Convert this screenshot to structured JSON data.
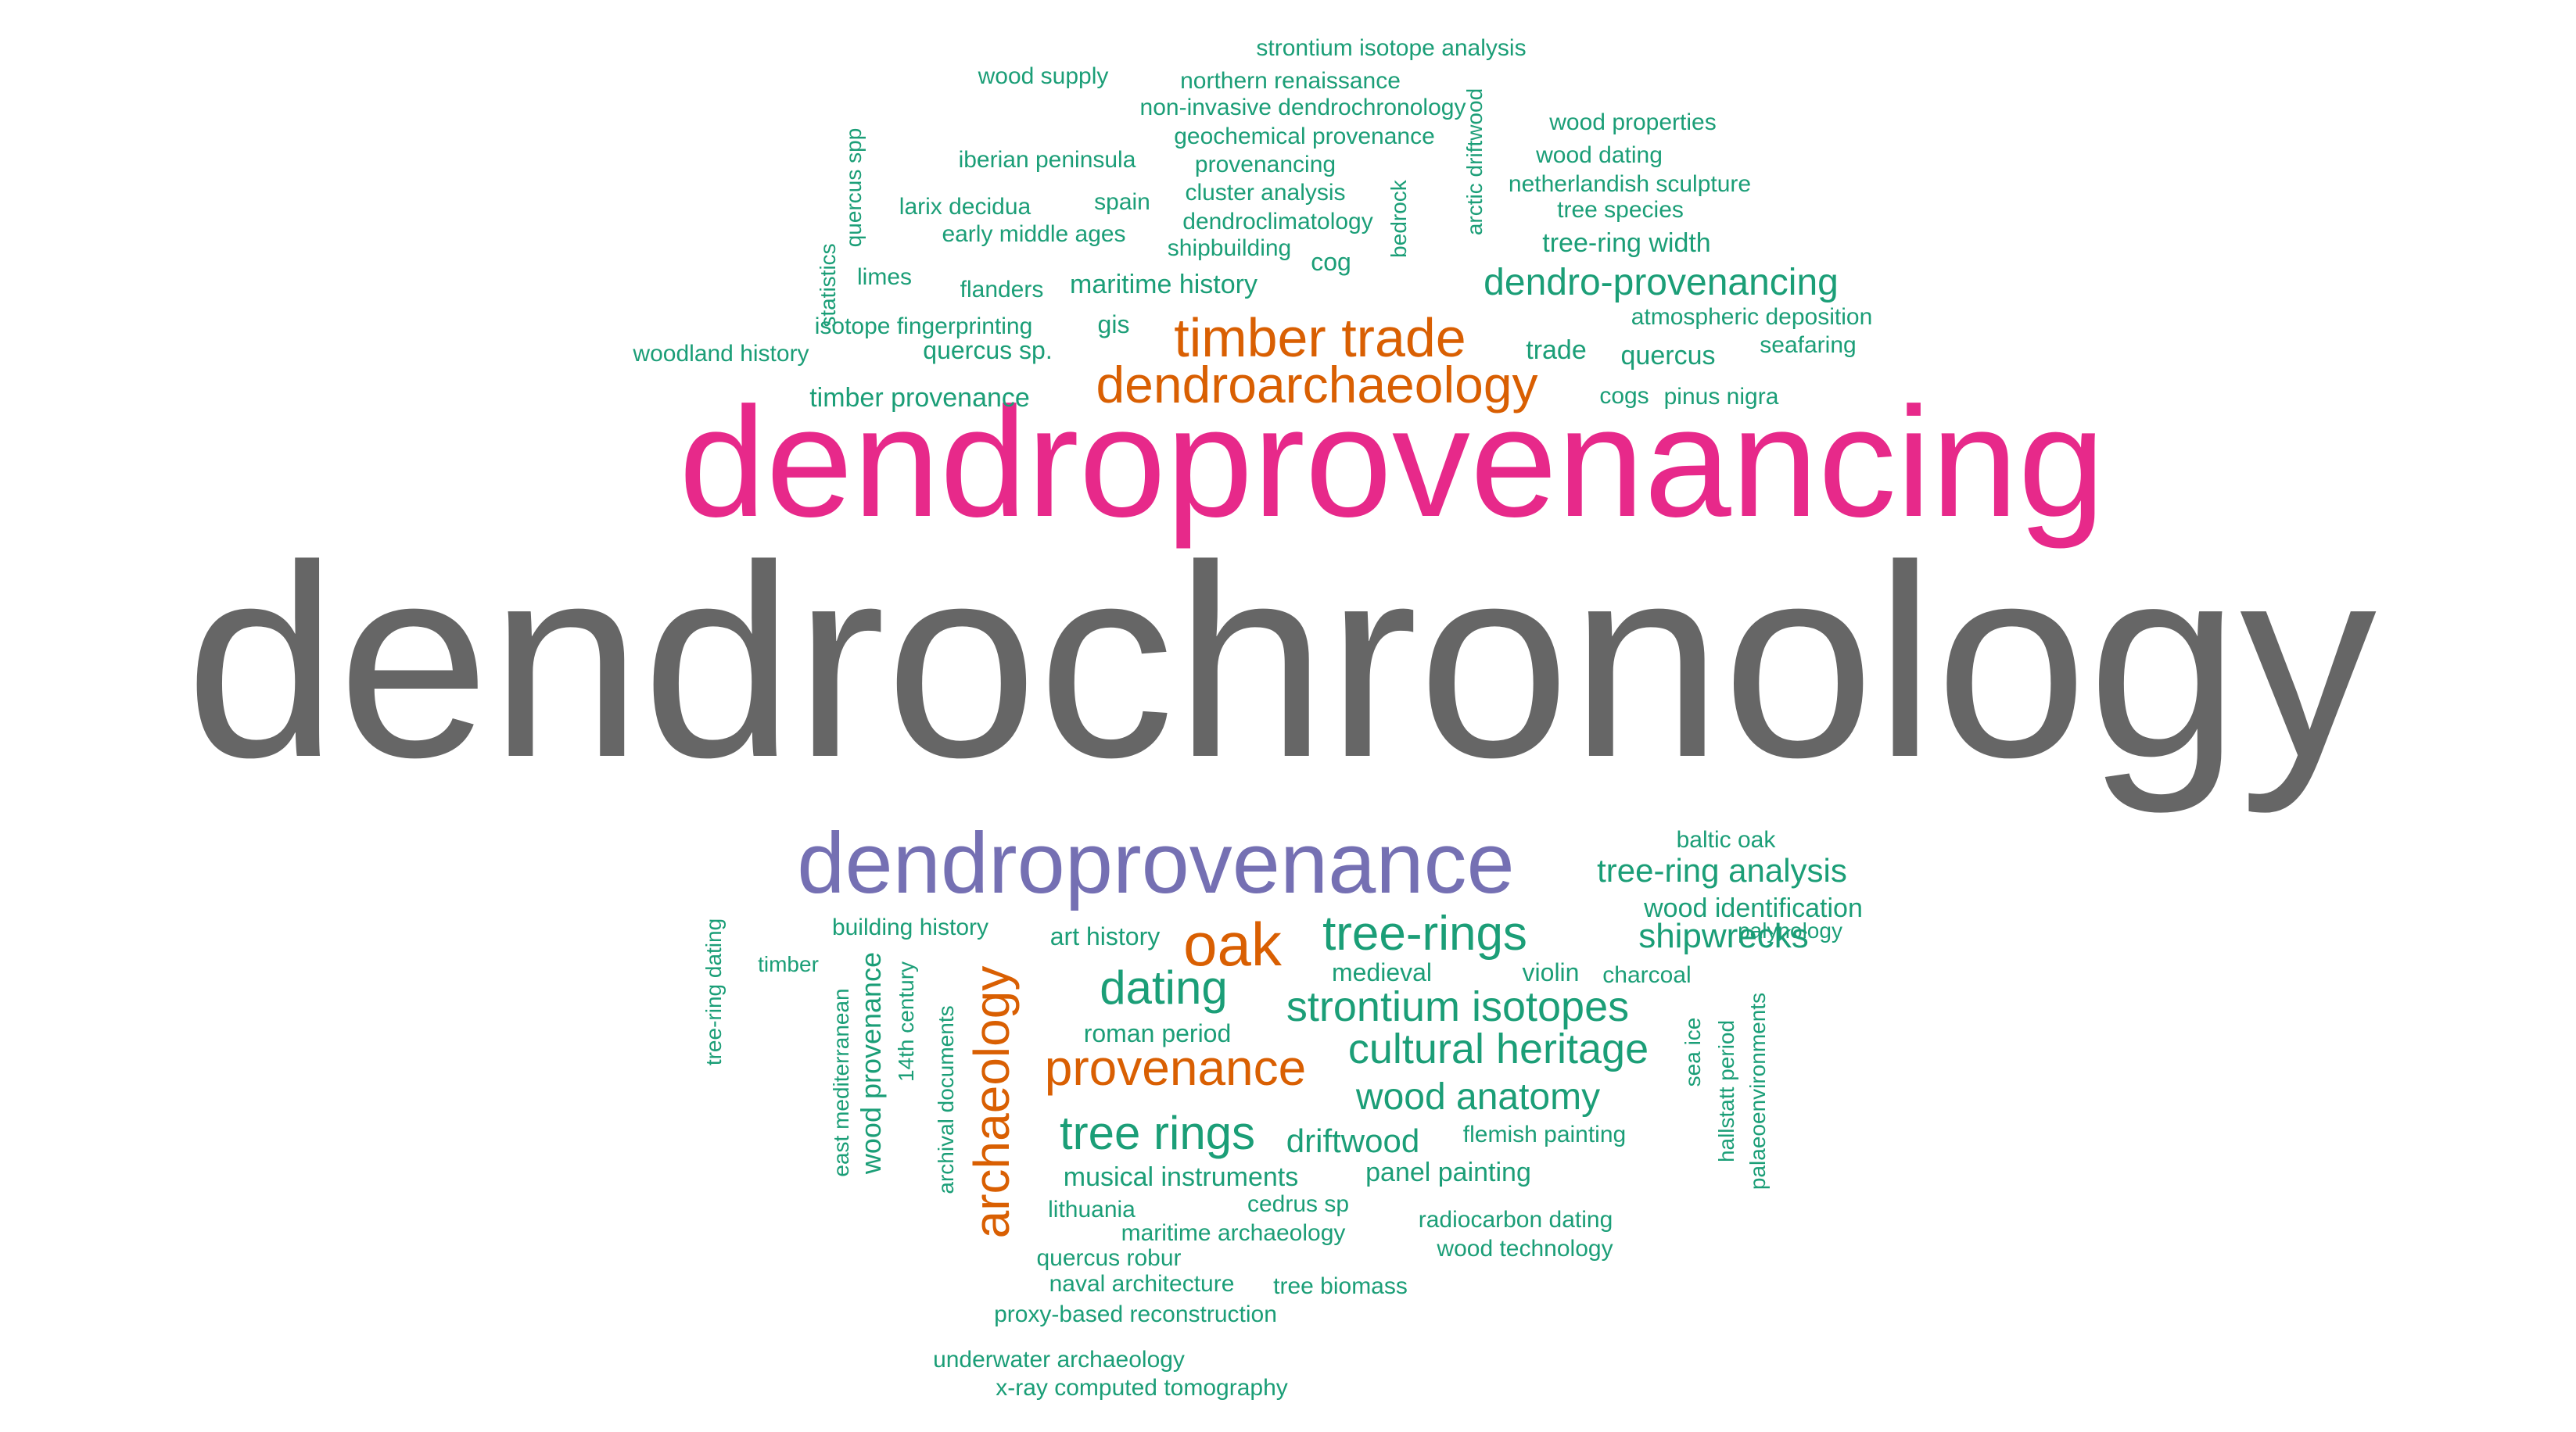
{
  "colors": {
    "gray": "#666666",
    "magenta": "#e7298a",
    "purple": "#7570b3",
    "orange": "#d95f02",
    "green": "#1b9e77"
  },
  "words": [
    {
      "text": "dendrochronology",
      "color": "gray",
      "rotated": false
    },
    {
      "text": "dendroprovenancing",
      "color": "magenta",
      "rotated": false
    },
    {
      "text": "dendroprovenance",
      "color": "purple",
      "rotated": false
    },
    {
      "text": "timber trade",
      "color": "orange",
      "rotated": false
    },
    {
      "text": "dendroarchaeology",
      "color": "orange",
      "rotated": false
    },
    {
      "text": "oak",
      "color": "orange",
      "rotated": false
    },
    {
      "text": "provenance",
      "color": "orange",
      "rotated": false
    },
    {
      "text": "archaeology",
      "color": "orange",
      "rotated": true
    },
    {
      "text": "tree-rings",
      "color": "green",
      "rotated": false
    },
    {
      "text": "dating",
      "color": "green",
      "rotated": false
    },
    {
      "text": "strontium isotopes",
      "color": "green",
      "rotated": false
    },
    {
      "text": "cultural heritage",
      "color": "green",
      "rotated": false
    },
    {
      "text": "tree rings",
      "color": "green",
      "rotated": false
    },
    {
      "text": "wood anatomy",
      "color": "green",
      "rotated": false
    },
    {
      "text": "dendro-provenancing",
      "color": "green",
      "rotated": false
    },
    {
      "text": "tree-ring analysis",
      "color": "green",
      "rotated": false
    },
    {
      "text": "shipwrecks",
      "color": "green",
      "rotated": false
    },
    {
      "text": "driftwood",
      "color": "green",
      "rotated": false
    },
    {
      "text": "wood identification",
      "color": "green",
      "rotated": false
    },
    {
      "text": "maritime history",
      "color": "green",
      "rotated": false
    },
    {
      "text": "tree-ring width",
      "color": "green",
      "rotated": false
    },
    {
      "text": "art history",
      "color": "green",
      "rotated": false
    },
    {
      "text": "medieval",
      "color": "green",
      "rotated": false
    },
    {
      "text": "violin",
      "color": "green",
      "rotated": false
    },
    {
      "text": "roman period",
      "color": "green",
      "rotated": false
    },
    {
      "text": "musical instruments",
      "color": "green",
      "rotated": false
    },
    {
      "text": "panel painting",
      "color": "green",
      "rotated": false
    },
    {
      "text": "timber provenance",
      "color": "green",
      "rotated": false
    },
    {
      "text": "trade",
      "color": "green",
      "rotated": false
    },
    {
      "text": "quercus",
      "color": "green",
      "rotated": false
    },
    {
      "text": "quercus sp.",
      "color": "green",
      "rotated": false
    },
    {
      "text": "gis",
      "color": "green",
      "rotated": false
    },
    {
      "text": "cog",
      "color": "green",
      "rotated": false
    },
    {
      "text": "wood provenance",
      "color": "green",
      "rotated": true
    },
    {
      "text": "strontium isotope analysis",
      "color": "green",
      "rotated": false
    },
    {
      "text": "wood supply",
      "color": "green",
      "rotated": false
    },
    {
      "text": "northern renaissance",
      "color": "green",
      "rotated": false
    },
    {
      "text": "non-invasive dendrochronology",
      "color": "green",
      "rotated": false
    },
    {
      "text": "geochemical provenance",
      "color": "green",
      "rotated": false
    },
    {
      "text": "provenancing",
      "color": "green",
      "rotated": false
    },
    {
      "text": "cluster analysis",
      "color": "green",
      "rotated": false
    },
    {
      "text": "dendroclimatology",
      "color": "green",
      "rotated": false
    },
    {
      "text": "shipbuilding",
      "color": "green",
      "rotated": false
    },
    {
      "text": "iberian peninsula",
      "color": "green",
      "rotated": false
    },
    {
      "text": "spain",
      "color": "green",
      "rotated": false
    },
    {
      "text": "larix decidua",
      "color": "green",
      "rotated": false
    },
    {
      "text": "early middle ages",
      "color": "green",
      "rotated": false
    },
    {
      "text": "limes",
      "color": "green",
      "rotated": false
    },
    {
      "text": "flanders",
      "color": "green",
      "rotated": false
    },
    {
      "text": "isotope fingerprinting",
      "color": "green",
      "rotated": false
    },
    {
      "text": "woodland history",
      "color": "green",
      "rotated": false
    },
    {
      "text": "wood properties",
      "color": "green",
      "rotated": false
    },
    {
      "text": "wood dating",
      "color": "green",
      "rotated": false
    },
    {
      "text": "netherlandish sculpture",
      "color": "green",
      "rotated": false
    },
    {
      "text": "tree species",
      "color": "green",
      "rotated": false
    },
    {
      "text": "atmospheric deposition",
      "color": "green",
      "rotated": false
    },
    {
      "text": "seafaring",
      "color": "green",
      "rotated": false
    },
    {
      "text": "cogs",
      "color": "green",
      "rotated": false
    },
    {
      "text": "pinus nigra",
      "color": "green",
      "rotated": false
    },
    {
      "text": "quercus spp",
      "color": "green",
      "rotated": true
    },
    {
      "text": "statistics",
      "color": "green",
      "rotated": true
    },
    {
      "text": "bedrock",
      "color": "green",
      "rotated": true
    },
    {
      "text": "arctic driftwood",
      "color": "green",
      "rotated": true
    },
    {
      "text": "baltic oak",
      "color": "green",
      "rotated": false
    },
    {
      "text": "palynology",
      "color": "green",
      "rotated": false
    },
    {
      "text": "charcoal",
      "color": "green",
      "rotated": false
    },
    {
      "text": "building history",
      "color": "green",
      "rotated": false
    },
    {
      "text": "timber",
      "color": "green",
      "rotated": false
    },
    {
      "text": "tree-ring dating",
      "color": "green",
      "rotated": true
    },
    {
      "text": "east mediterranean",
      "color": "green",
      "rotated": true
    },
    {
      "text": "14th century",
      "color": "green",
      "rotated": true
    },
    {
      "text": "archival documents",
      "color": "green",
      "rotated": true
    },
    {
      "text": "flemish painting",
      "color": "green",
      "rotated": false
    },
    {
      "text": "cedrus sp",
      "color": "green",
      "rotated": false
    },
    {
      "text": "lithuania",
      "color": "green",
      "rotated": false
    },
    {
      "text": "maritime archaeology",
      "color": "green",
      "rotated": false
    },
    {
      "text": "radiocarbon dating",
      "color": "green",
      "rotated": false
    },
    {
      "text": "wood technology",
      "color": "green",
      "rotated": false
    },
    {
      "text": "quercus robur",
      "color": "green",
      "rotated": false
    },
    {
      "text": "naval architecture",
      "color": "green",
      "rotated": false
    },
    {
      "text": "tree biomass",
      "color": "green",
      "rotated": false
    },
    {
      "text": "proxy-based reconstruction",
      "color": "green",
      "rotated": false
    },
    {
      "text": "underwater archaeology",
      "color": "green",
      "rotated": false
    },
    {
      "text": "x-ray computed tomography",
      "color": "green",
      "rotated": false
    },
    {
      "text": "sea ice",
      "color": "green",
      "rotated": true
    },
    {
      "text": "hallstatt period",
      "color": "green",
      "rotated": true
    },
    {
      "text": "palaeoenvironments",
      "color": "green",
      "rotated": true
    }
  ]
}
